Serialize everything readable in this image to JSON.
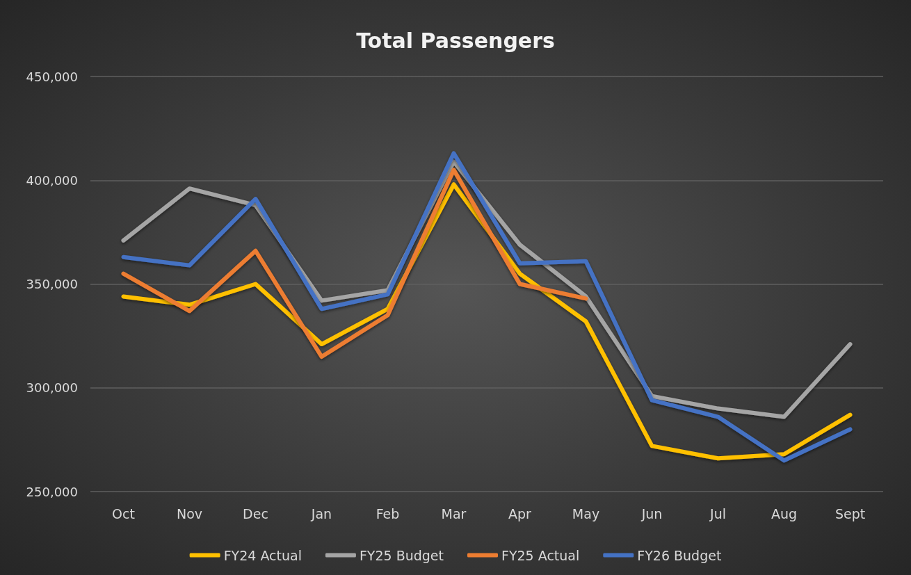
{
  "chart_data": {
    "type": "line",
    "title": "Total Passengers",
    "categories": [
      "Oct",
      "Nov",
      "Dec",
      "Jan",
      "Feb",
      "Mar",
      "Apr",
      "May",
      "Jun",
      "Jul",
      "Aug",
      "Sept"
    ],
    "series": [
      {
        "name": "FY24 Actual",
        "color": "#ffc000",
        "values": [
          344000,
          340000,
          350000,
          321000,
          338000,
          398000,
          355000,
          332000,
          272000,
          266000,
          268000,
          287000
        ]
      },
      {
        "name": "FY25 Budget",
        "color": "#a5a5a5",
        "values": [
          371000,
          396000,
          388000,
          342000,
          347000,
          409000,
          369000,
          344000,
          296000,
          290000,
          286000,
          321000
        ]
      },
      {
        "name": "FY25 Actual",
        "color": "#ed7d31",
        "values": [
          355000,
          337000,
          366000,
          315000,
          335000,
          405000,
          350000,
          343000,
          null,
          null,
          null,
          null
        ]
      },
      {
        "name": "FY26 Budget",
        "color": "#4472c4",
        "values": [
          363000,
          359000,
          391000,
          338000,
          345000,
          413000,
          360000,
          361000,
          294000,
          286000,
          265000,
          280000
        ]
      }
    ],
    "ylim": [
      250000,
      450000
    ],
    "yticks": [
      {
        "value": 250000,
        "label": "250,000"
      },
      {
        "value": 300000,
        "label": "300,000"
      },
      {
        "value": 350000,
        "label": "350,000"
      },
      {
        "value": 400000,
        "label": "400,000"
      },
      {
        "value": 450000,
        "label": "450,000"
      }
    ],
    "grid": "y",
    "legend": "bottom",
    "marker": "none",
    "line_style": "solid"
  }
}
